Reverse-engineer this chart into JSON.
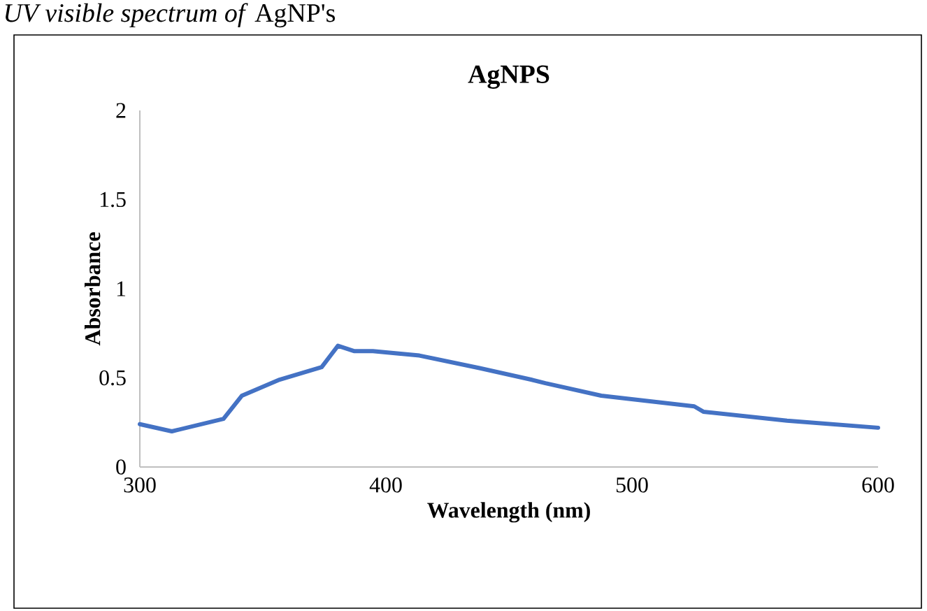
{
  "chart_data": {
    "type": "line",
    "title": "AgNPS",
    "annotations": [
      "*UV visible spectrum of* AgNP's"
    ],
    "xlabel": "Wavelength (nm)",
    "ylabel": "Absorbance",
    "x": [
      300,
      313,
      334,
      341.5,
      356.8,
      373.9,
      380.5,
      387,
      394.7,
      413.6,
      438,
      459,
      464.8,
      487.5,
      525.3,
      529,
      563,
      600
    ],
    "series": [
      {
        "color": "#4472c4",
        "values": [
          0.24,
          0.2,
          0.27,
          0.4,
          0.49,
          0.56,
          0.68,
          0.65,
          0.65,
          0.625,
          0.555,
          0.49,
          0.47,
          0.4,
          0.34,
          0.31,
          0.26,
          0.22
        ]
      }
    ],
    "xlim": [
      300,
      600
    ],
    "xticks": [
      300,
      400,
      500,
      600
    ],
    "ylim": [
      0,
      2
    ],
    "yticks": [
      0,
      0.5,
      1,
      1.5,
      2
    ],
    "grid": false,
    "marker": "none",
    "line_style": "solid"
  }
}
